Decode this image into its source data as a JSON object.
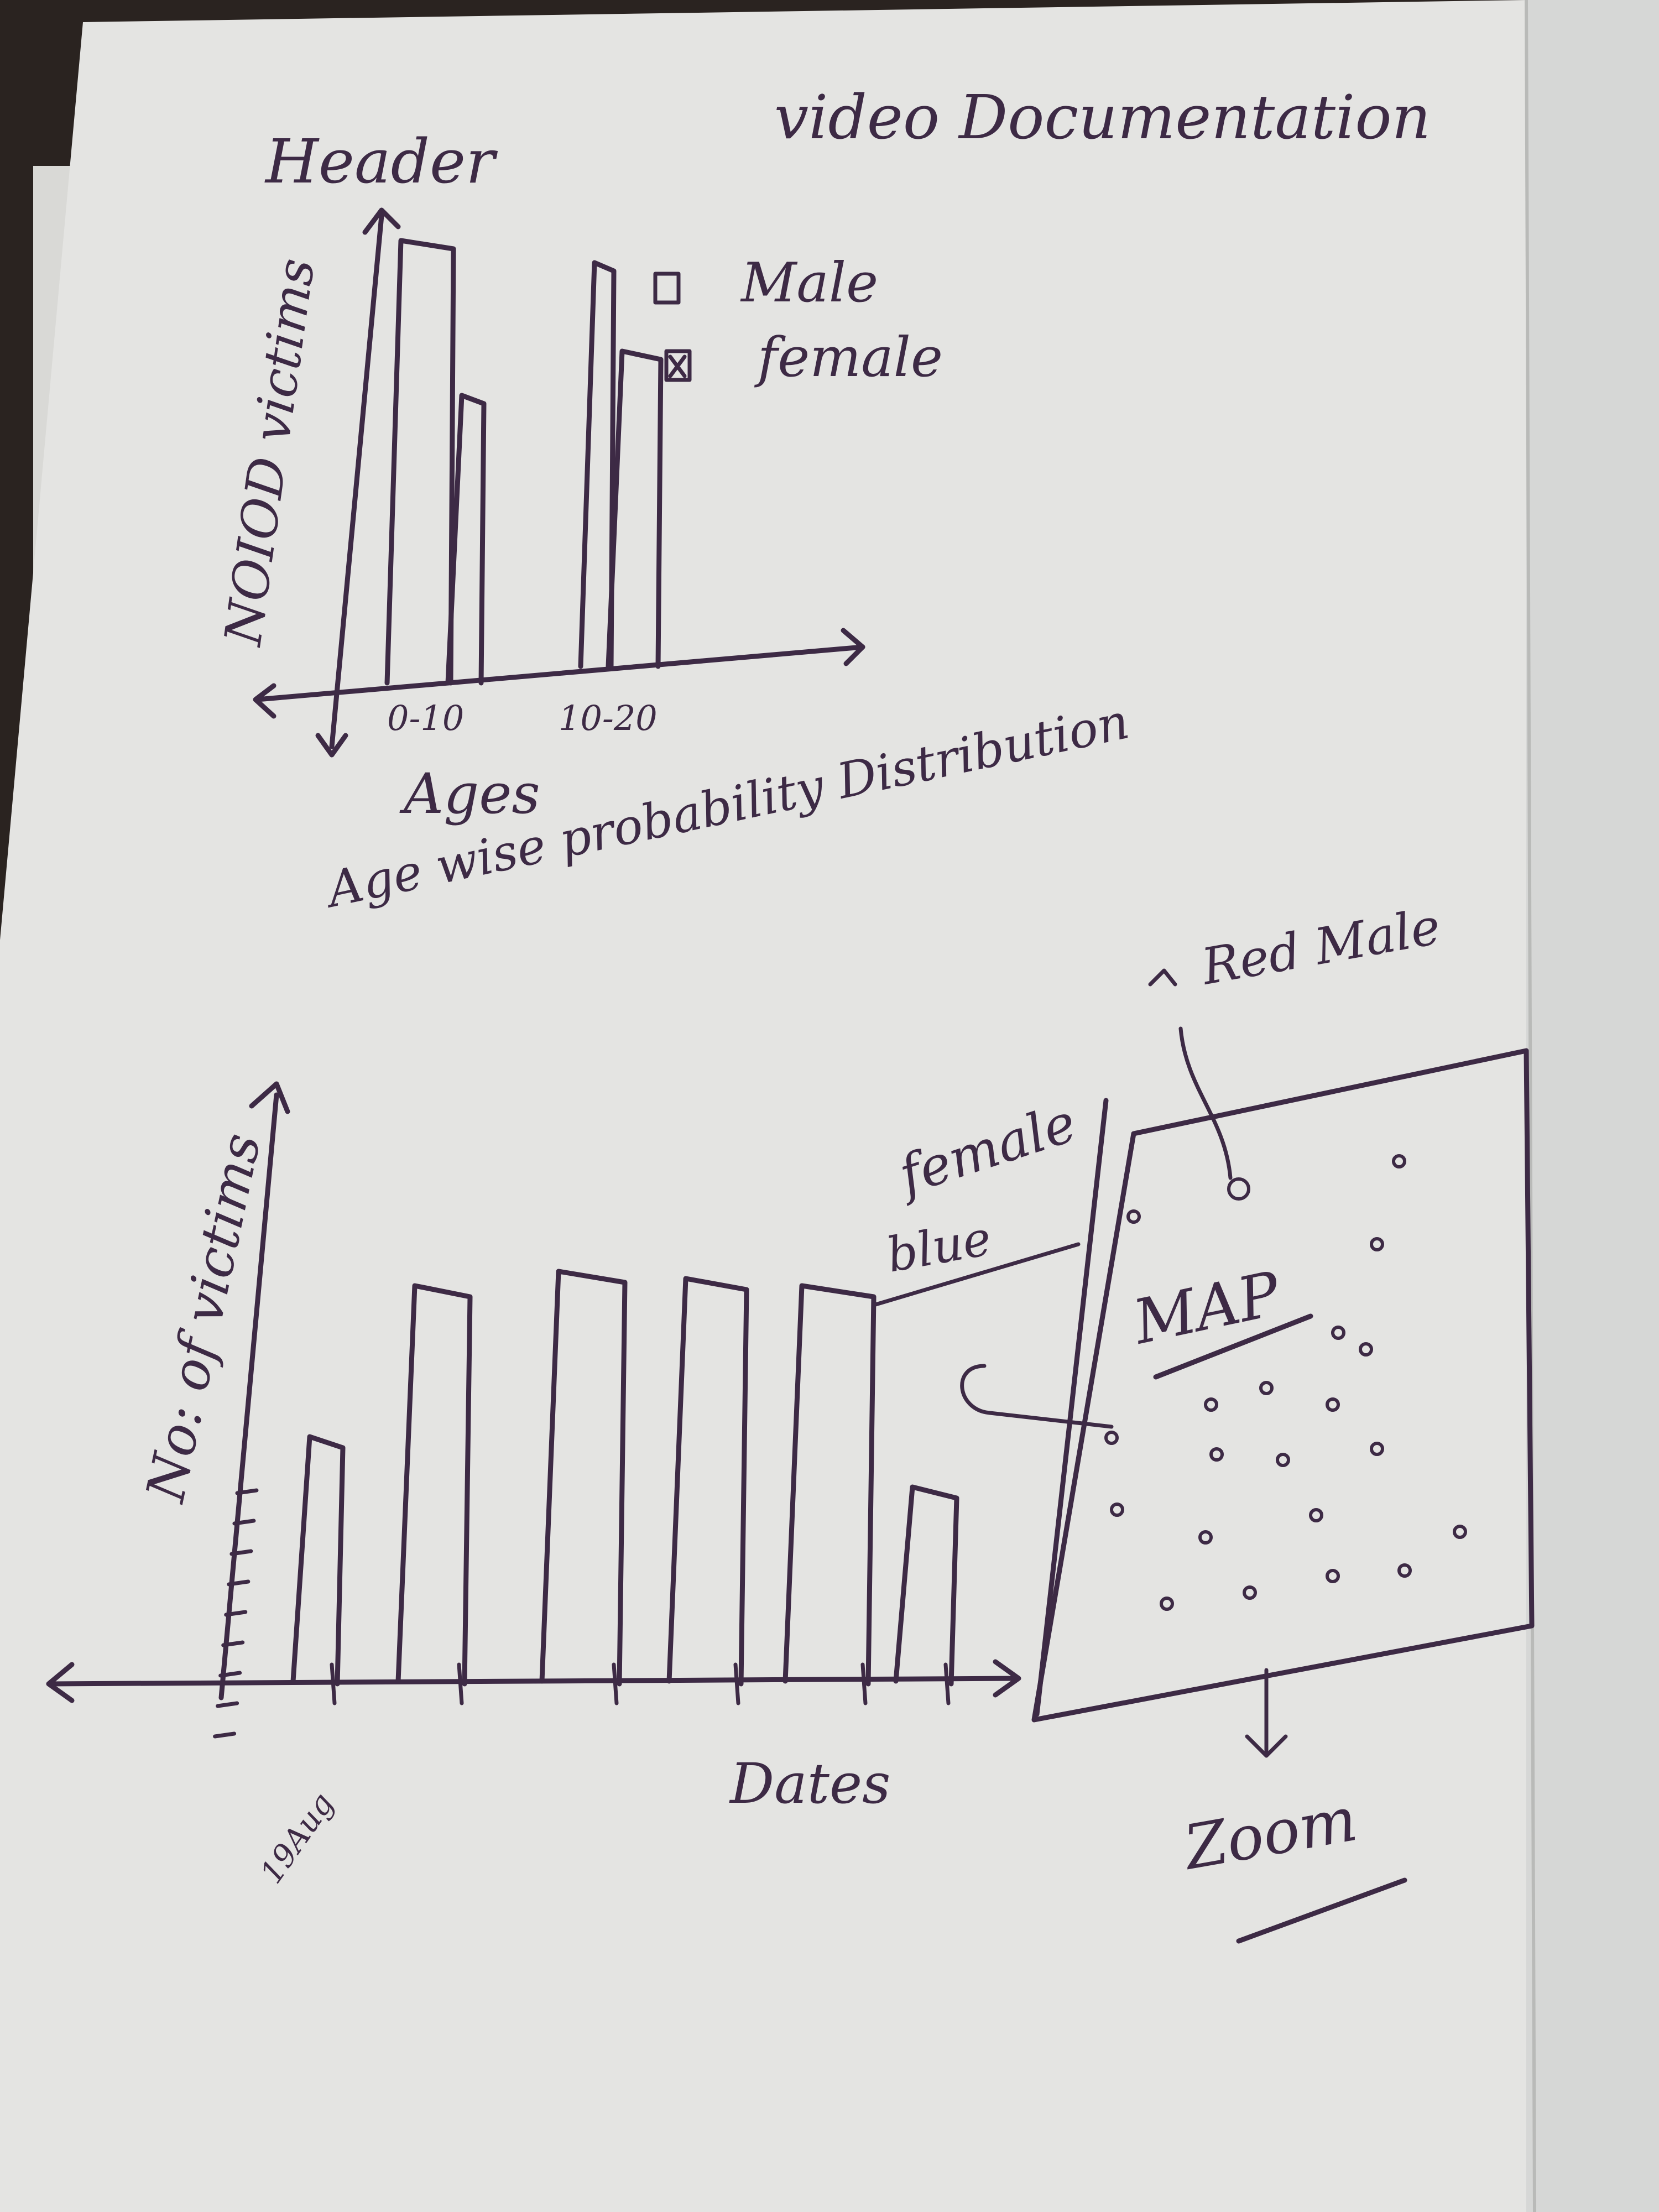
{
  "sheet": {
    "header": "Header",
    "title": "video Documentation"
  },
  "age_chart": {
    "ylabel": "NOIOD victims",
    "xlabel": "Ages",
    "caption": "Age wise probability Distribution",
    "legend": [
      "Male",
      "female"
    ],
    "categories": [
      "0-10",
      "10-20"
    ]
  },
  "date_chart": {
    "ylabel": "No: of victims",
    "xlabel": "Dates",
    "first_tick_label": "19Aug"
  },
  "map_panel": {
    "title": "MAP",
    "callout_top": "Red Male",
    "callout_left_line1": "female",
    "callout_left_line2": "blue",
    "callout_bottom": "Zoom"
  },
  "chart_data": [
    {
      "type": "bar",
      "categories": [
        "0-10",
        "10-20"
      ],
      "series": [
        {
          "name": "Male",
          "values": [
            8,
            7.3
          ]
        },
        {
          "name": "female",
          "values": [
            5.2,
            5.7
          ]
        }
      ],
      "xlabel": "Ages",
      "ylabel": "NOIOD victims",
      "title": "Age wise probability Distribution",
      "legend_position": "top-right"
    },
    {
      "type": "bar",
      "categories": [
        "19Aug",
        "",
        "",
        "",
        "",
        ""
      ],
      "values": [
        3.4,
        5.5,
        5.7,
        5.6,
        5.5,
        2.7
      ],
      "xlabel": "Dates",
      "ylabel": "No: of victims"
    }
  ]
}
